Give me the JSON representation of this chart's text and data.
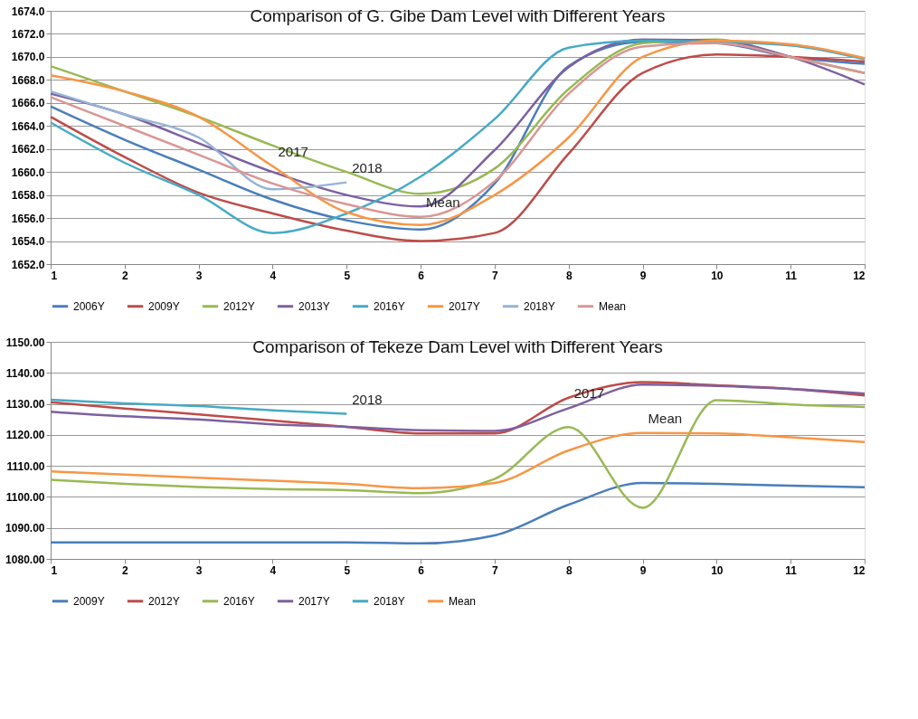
{
  "chart_data": [
    {
      "type": "line",
      "title": "Comparison of G. Gibe Dam Level with Different Years",
      "x": [
        1,
        2,
        3,
        4,
        5,
        6,
        7,
        8,
        9,
        10,
        11,
        12
      ],
      "xlim": [
        1,
        12
      ],
      "xticks": [
        1,
        2,
        3,
        4,
        5,
        6,
        7,
        8,
        9,
        10,
        11,
        12
      ],
      "ylim": [
        1652,
        1674
      ],
      "yticks": [
        {
          "value": 1652,
          "label": "1652.0"
        },
        {
          "value": 1654,
          "label": "1654.0"
        },
        {
          "value": 1656,
          "label": "1656.0"
        },
        {
          "value": 1658,
          "label": "1658.0"
        },
        {
          "value": 1660,
          "label": "1660.0"
        },
        {
          "value": 1662,
          "label": "1662.0"
        },
        {
          "value": 1664,
          "label": "1664.0"
        },
        {
          "value": 1666,
          "label": "1666.0"
        },
        {
          "value": 1668,
          "label": "1668.0"
        },
        {
          "value": 1670,
          "label": "1670.0"
        },
        {
          "value": 1672,
          "label": "1672.0"
        },
        {
          "value": 1674,
          "label": "1674.0"
        }
      ],
      "grid": "y",
      "legend": "bottom",
      "series": [
        {
          "name": "2006Y",
          "color": "#4a7ebb",
          "values": [
            1665.7,
            1662.8,
            1660.2,
            1657.6,
            1655.8,
            1655.0,
            1659.0,
            1669.2,
            1671.3,
            1671.2,
            1670.0,
            1669.4
          ]
        },
        {
          "name": "2009Y",
          "color": "#be4b48",
          "values": [
            1664.8,
            1661.3,
            1658.2,
            1656.4,
            1654.9,
            1654.0,
            1654.7,
            1661.6,
            1668.6,
            1670.2,
            1670.0,
            1669.6
          ]
        },
        {
          "name": "2012Y",
          "color": "#98b954",
          "values": [
            1669.2,
            1667.0,
            1664.8,
            1662.3,
            1660.0,
            1658.1,
            1660.3,
            1667.2,
            1671.2,
            1671.5,
            1670.0,
            1668.6
          ]
        },
        {
          "name": "2013Y",
          "color": "#7d60a0",
          "values": [
            1666.8,
            1665.0,
            1662.5,
            1660.0,
            1658.0,
            1657.0,
            1661.9,
            1669.1,
            1671.5,
            1671.4,
            1670.0,
            1667.6
          ]
        },
        {
          "name": "2016Y",
          "color": "#46aac5",
          "values": [
            1664.3,
            1660.8,
            1658.0,
            1654.7,
            1656.4,
            1659.6,
            1664.6,
            1670.8,
            1671.4,
            1671.3,
            1671.0,
            1669.8
          ]
        },
        {
          "name": "2017Y",
          "color": "#f79646",
          "values": [
            1668.4,
            1667.0,
            1664.8,
            1660.5,
            1656.5,
            1655.4,
            1658.0,
            1663.0,
            1670.0,
            1671.4,
            1671.1,
            1669.9
          ]
        },
        {
          "name": "2018Y",
          "color": "#95b3d7",
          "values": [
            1667.0,
            1665.0,
            1663.0,
            1658.5,
            1659.1,
            null,
            null,
            null,
            null,
            null,
            null,
            null
          ]
        },
        {
          "name": "Mean",
          "color": "#d99694",
          "values": [
            1666.5,
            1664.0,
            1661.5,
            1659.0,
            1657.2,
            1656.1,
            1659.2,
            1666.8,
            1670.9,
            1671.2,
            1670.0,
            1668.6
          ]
        }
      ],
      "annotations": [
        {
          "text": "2017",
          "x": 4,
          "y": 1660.5
        },
        {
          "text": "2018",
          "x": 5,
          "y": 1659.1
        },
        {
          "text": "Mean",
          "x": 6,
          "y": 1656.1
        }
      ]
    },
    {
      "type": "line",
      "title": "Comparison of Tekeze Dam Level with Different Years",
      "x": [
        1,
        2,
        3,
        4,
        5,
        6,
        7,
        8,
        9,
        10,
        11,
        12
      ],
      "xlim": [
        1,
        12
      ],
      "xticks": [
        1,
        2,
        3,
        4,
        5,
        6,
        7,
        8,
        9,
        10,
        11,
        12
      ],
      "ylim": [
        1080,
        1150
      ],
      "yticks": [
        {
          "value": 1080,
          "label": "1080.00"
        },
        {
          "value": 1090,
          "label": "1090.00"
        },
        {
          "value": 1100,
          "label": "1100.00"
        },
        {
          "value": 1110,
          "label": "1110.00"
        },
        {
          "value": 1120,
          "label": "1120.00"
        },
        {
          "value": 1130,
          "label": "1130.00"
        },
        {
          "value": 1140,
          "label": "1140.00"
        },
        {
          "value": 1150,
          "label": "1150.00"
        }
      ],
      "grid": "y",
      "legend": "bottom",
      "series": [
        {
          "name": "2009Y",
          "color": "#4a7ebb",
          "values": [
            1085.3,
            1085.3,
            1085.3,
            1085.3,
            1085.3,
            1085.0,
            1087.6,
            1097.5,
            1104.5,
            1104.2,
            1103.6,
            1103.1
          ]
        },
        {
          "name": "2012Y",
          "color": "#be4b48",
          "values": [
            1130.5,
            1128.5,
            1126.6,
            1124.6,
            1122.6,
            1120.5,
            1120.5,
            1132.0,
            1137.0,
            1136.0,
            1134.8,
            1132.7
          ]
        },
        {
          "name": "2016Y",
          "color": "#98b954",
          "values": [
            1105.5,
            1104.2,
            1103.2,
            1102.5,
            1102.2,
            1101.2,
            1105.8,
            1122.5,
            1096.5,
            1131.2,
            1129.8,
            1129.0
          ]
        },
        {
          "name": "2017Y",
          "color": "#7d60a0",
          "values": [
            1127.5,
            1126.0,
            1125.0,
            1123.4,
            1122.6,
            1121.5,
            1121.3,
            1128.6,
            1136.2,
            1135.8,
            1134.8,
            1133.3
          ]
        },
        {
          "name": "2018Y",
          "color": "#46aac5",
          "values": [
            1131.3,
            1130.2,
            1129.3,
            1127.9,
            1126.8,
            null,
            null,
            null,
            null,
            null,
            null,
            null
          ]
        },
        {
          "name": "Mean",
          "color": "#f79646",
          "values": [
            1108.2,
            1107.2,
            1106.2,
            1105.2,
            1104.2,
            1102.8,
            1104.5,
            1115.0,
            1120.6,
            1120.5,
            1119.2,
            1117.7
          ]
        }
      ],
      "annotations": [
        {
          "text": "2018",
          "x": 5,
          "y": 1126.8
        },
        {
          "text": "2017",
          "x": 8,
          "y": 1128.6
        },
        {
          "text": "Mean",
          "x": 9,
          "y": 1120.6
        }
      ]
    }
  ]
}
